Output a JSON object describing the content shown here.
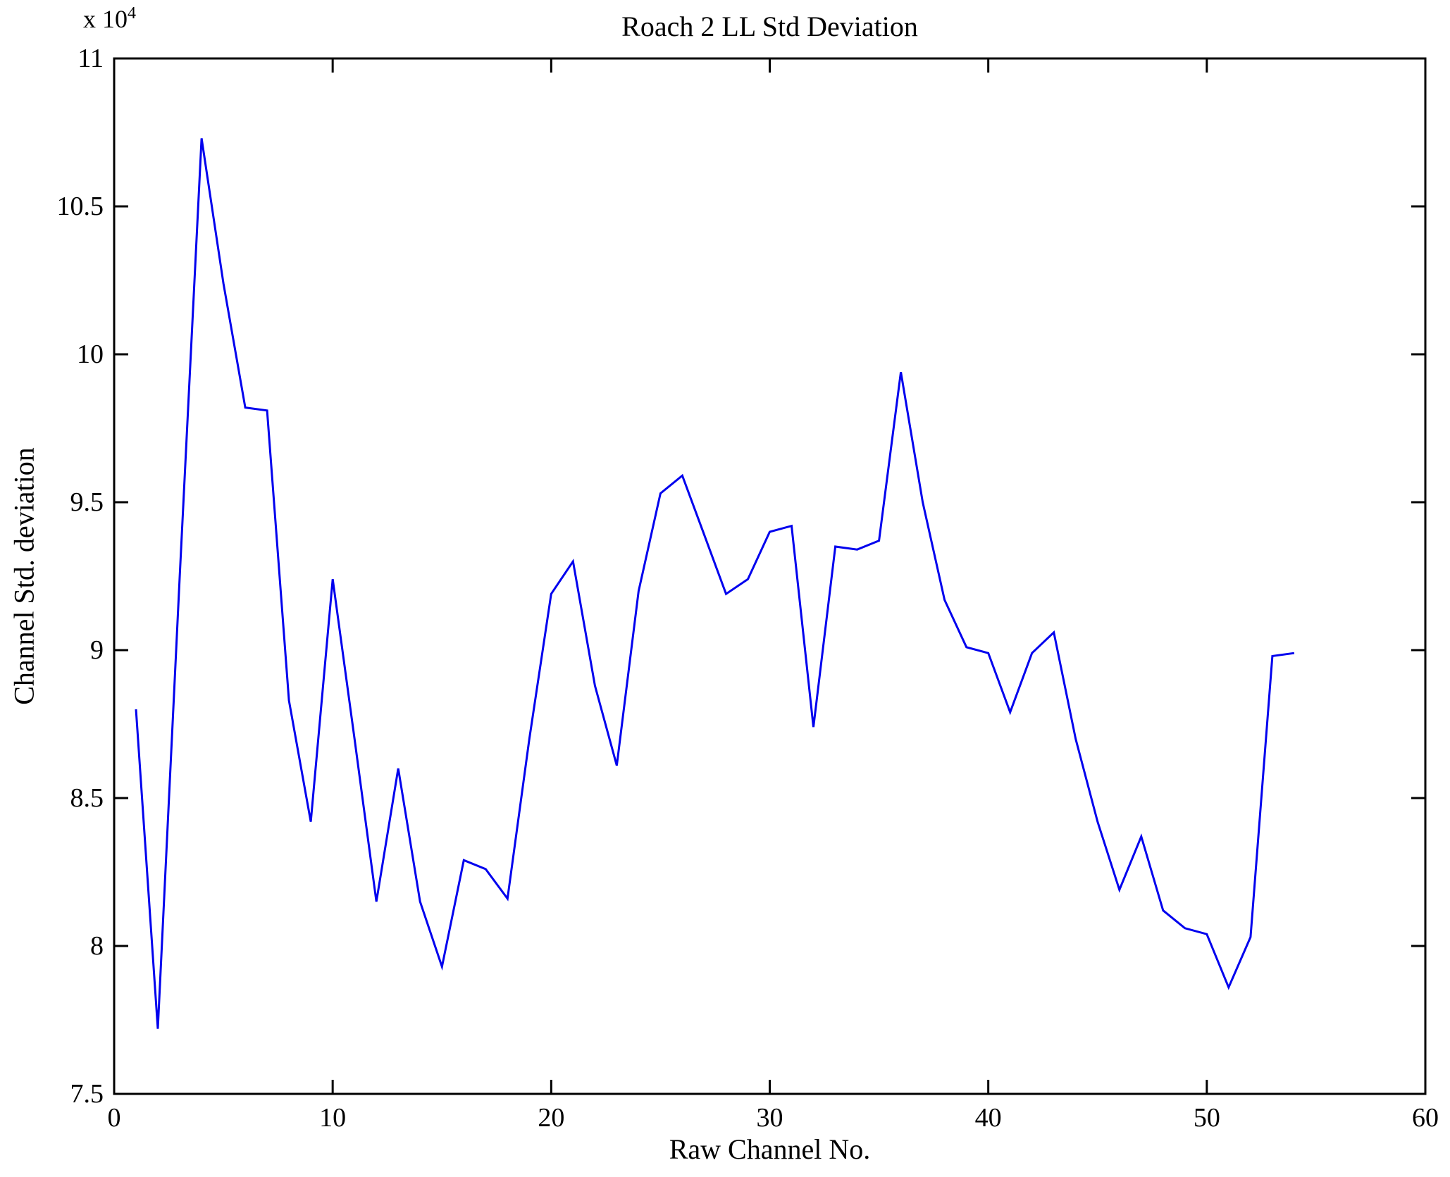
{
  "figure": {
    "background": "#ffffff",
    "frame_color": "#000000"
  },
  "chart_data": {
    "type": "line",
    "title": "Roach 2 LL Std Deviation",
    "xlabel": "Raw Channel No.",
    "ylabel": "Channel Std. deviation",
    "y_multiplier_prefix": "x 10",
    "y_multiplier_exponent": "4",
    "values_scale": 10000,
    "grid": "off",
    "legend": "none",
    "line_color": "#0000EE",
    "xlim": [
      0,
      60
    ],
    "ylim_x1e4": [
      7.5,
      11
    ],
    "xticks": [
      "0",
      "10",
      "20",
      "30",
      "40",
      "50",
      "60"
    ],
    "yticks": [
      "7.5",
      "8",
      "8.5",
      "9",
      "9.5",
      "10",
      "10.5",
      "11"
    ],
    "channels": [
      1,
      2,
      3,
      4,
      5,
      6,
      7,
      8,
      9,
      10,
      11,
      12,
      13,
      14,
      15,
      16,
      17,
      18,
      19,
      20,
      21,
      22,
      23,
      24,
      25,
      26,
      27,
      28,
      29,
      30,
      31,
      32,
      33,
      34,
      35,
      36,
      37,
      38,
      39,
      40,
      41,
      42,
      43,
      44,
      45,
      46,
      47,
      48,
      49,
      50,
      51,
      52,
      53,
      54
    ],
    "values_x1e4": [
      8.8,
      7.72,
      9.25,
      10.73,
      10.24,
      9.82,
      9.81,
      8.83,
      8.42,
      9.24,
      8.7,
      8.15,
      8.6,
      8.15,
      7.93,
      8.29,
      8.26,
      8.16,
      8.7,
      9.19,
      9.3,
      8.88,
      8.61,
      9.2,
      9.53,
      9.59,
      9.39,
      9.19,
      9.24,
      9.4,
      9.42,
      8.74,
      9.35,
      9.34,
      9.37,
      9.94,
      9.5,
      9.17,
      9.01,
      8.99,
      8.79,
      8.99,
      9.06,
      8.7,
      8.42,
      8.19,
      8.37,
      8.12,
      8.06,
      8.04,
      7.86,
      8.03,
      8.98,
      8.99
    ]
  }
}
